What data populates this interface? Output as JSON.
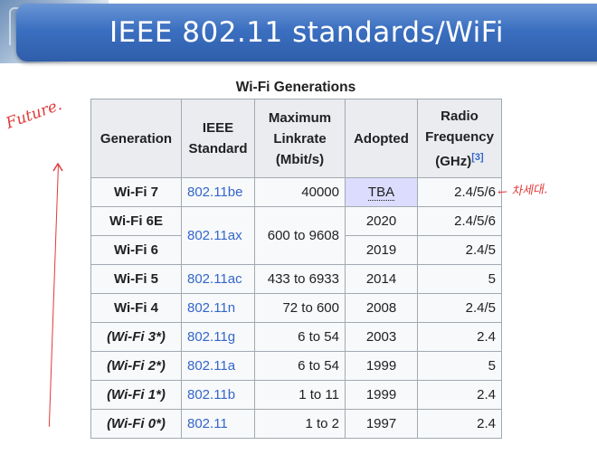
{
  "slide": {
    "title": "IEEE 802.11 standards/WiFi"
  },
  "table": {
    "caption": "Wi-Fi Generations",
    "headers": {
      "generation": "Generation",
      "standard_line1": "IEEE",
      "standard_line2": "Standard",
      "linkrate_line1": "Maximum",
      "linkrate_line2": "Linkrate",
      "linkrate_line3": "(Mbit/s)",
      "adopted": "Adopted",
      "frequency_line1": "Radio",
      "frequency_line2": "Frequency",
      "frequency_line3": "(GHz)",
      "frequency_ref": "[3]"
    },
    "rows": [
      {
        "generation": "Wi-Fi 7",
        "standard": "802.11be",
        "linkrate": "40000",
        "adopted": "TBA",
        "frequency": "2.4/5/6"
      },
      {
        "generation": "Wi-Fi 6E",
        "standard": "802.11ax",
        "linkrate": "600 to 9608",
        "adopted": "2020",
        "frequency": "2.4/5/6"
      },
      {
        "generation": "Wi-Fi 6",
        "standard": "802.11ax",
        "linkrate": "600 to 9608",
        "adopted": "2019",
        "frequency": "2.4/5"
      },
      {
        "generation": "Wi-Fi 5",
        "standard": "802.11ac",
        "linkrate": "433 to 6933",
        "adopted": "2014",
        "frequency": "5"
      },
      {
        "generation": "Wi-Fi 4",
        "standard": "802.11n",
        "linkrate": "72 to 600",
        "adopted": "2008",
        "frequency": "2.4/5"
      },
      {
        "generation": "(Wi-Fi 3*)",
        "standard": "802.11g",
        "linkrate": "6 to 54",
        "adopted": "2003",
        "frequency": "2.4"
      },
      {
        "generation": "(Wi-Fi 2*)",
        "standard": "802.11a",
        "linkrate": "6 to 54",
        "adopted": "1999",
        "frequency": "5"
      },
      {
        "generation": "(Wi-Fi 1*)",
        "standard": "802.11b",
        "linkrate": "1 to 11",
        "adopted": "1999",
        "frequency": "2.4"
      },
      {
        "generation": "(Wi-Fi 0*)",
        "standard": "802.11",
        "linkrate": "1 to 2",
        "adopted": "1997",
        "frequency": "2.4"
      }
    ]
  },
  "annotations": {
    "future": "Future.",
    "note": "← 차세대."
  },
  "colors": {
    "title_bar": "#3b6fc0",
    "link": "#3366cc",
    "header_bg": "#eaecf0",
    "tba_bg": "#dcdcfe",
    "handwriting": "#e03a3a"
  },
  "icons": {
    "annotation_arrow": "arrow-up-icon"
  }
}
